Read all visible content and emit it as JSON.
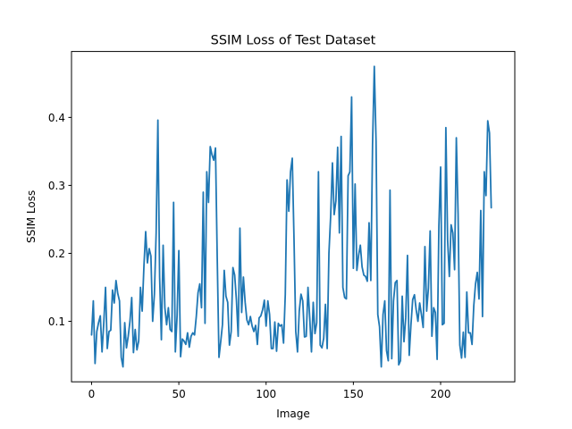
{
  "chart_data": {
    "type": "line",
    "title": "SSIM Loss of Test Dataset",
    "xlabel": "Image",
    "ylabel": "SSIM Loss",
    "xlim": [
      -11.5,
      242.5
    ],
    "ylim": [
      0.011,
      0.497
    ],
    "xticks": [
      0,
      50,
      100,
      150,
      200
    ],
    "yticks": [
      0.1,
      0.2,
      0.3,
      0.4
    ],
    "ytick_labels": [
      "0.1",
      "0.2",
      "0.3",
      "0.4"
    ],
    "grid": false,
    "color": "#1f77b4",
    "series": [
      {
        "y": [
          0.08,
          0.13,
          0.038,
          0.085,
          0.098,
          0.108,
          0.055,
          0.098,
          0.15,
          0.06,
          0.085,
          0.087,
          0.146,
          0.127,
          0.16,
          0.141,
          0.13,
          0.047,
          0.033,
          0.098,
          0.061,
          0.078,
          0.1,
          0.135,
          0.054,
          0.088,
          0.058,
          0.071,
          0.15,
          0.115,
          0.181,
          0.232,
          0.186,
          0.207,
          0.196,
          0.1,
          0.14,
          0.23,
          0.396,
          0.165,
          0.073,
          0.212,
          0.12,
          0.095,
          0.12,
          0.088,
          0.085,
          0.275,
          0.055,
          0.108,
          0.204,
          0.048,
          0.074,
          0.071,
          0.066,
          0.083,
          0.062,
          0.078,
          0.083,
          0.08,
          0.107,
          0.142,
          0.155,
          0.12,
          0.29,
          0.097,
          0.32,
          0.275,
          0.357,
          0.345,
          0.337,
          0.355,
          0.193,
          0.047,
          0.07,
          0.095,
          0.175,
          0.137,
          0.128,
          0.065,
          0.085,
          0.179,
          0.168,
          0.131,
          0.078,
          0.237,
          0.113,
          0.165,
          0.128,
          0.102,
          0.095,
          0.107,
          0.093,
          0.085,
          0.094,
          0.066,
          0.105,
          0.108,
          0.117,
          0.131,
          0.093,
          0.13,
          0.11,
          0.06,
          0.06,
          0.099,
          0.056,
          0.097,
          0.093,
          0.095,
          0.068,
          0.14,
          0.308,
          0.262,
          0.32,
          0.34,
          0.22,
          0.085,
          0.055,
          0.115,
          0.14,
          0.13,
          0.077,
          0.078,
          0.15,
          0.105,
          0.055,
          0.128,
          0.082,
          0.098,
          0.32,
          0.065,
          0.061,
          0.075,
          0.125,
          0.06,
          0.2,
          0.255,
          0.333,
          0.257,
          0.277,
          0.356,
          0.23,
          0.372,
          0.15,
          0.135,
          0.133,
          0.314,
          0.32,
          0.43,
          0.178,
          0.302,
          0.175,
          0.197,
          0.212,
          0.18,
          0.168,
          0.166,
          0.159,
          0.245,
          0.16,
          0.36,
          0.475,
          0.365,
          0.11,
          0.092,
          0.033,
          0.11,
          0.13,
          0.057,
          0.042,
          0.293,
          0.045,
          0.13,
          0.157,
          0.16,
          0.036,
          0.042,
          0.137,
          0.07,
          0.105,
          0.197,
          0.05,
          0.095,
          0.132,
          0.139,
          0.117,
          0.1,
          0.127,
          0.11,
          0.091,
          0.21,
          0.115,
          0.149,
          0.233,
          0.078,
          0.12,
          0.113,
          0.044,
          0.24,
          0.327,
          0.095,
          0.097,
          0.385,
          0.22,
          0.166,
          0.242,
          0.23,
          0.176,
          0.37,
          0.258,
          0.065,
          0.046,
          0.084,
          0.047,
          0.143,
          0.083,
          0.083,
          0.066,
          0.123,
          0.155,
          0.172,
          0.133,
          0.263,
          0.107,
          0.32,
          0.285,
          0.395,
          0.377,
          0.267
        ]
      }
    ]
  }
}
